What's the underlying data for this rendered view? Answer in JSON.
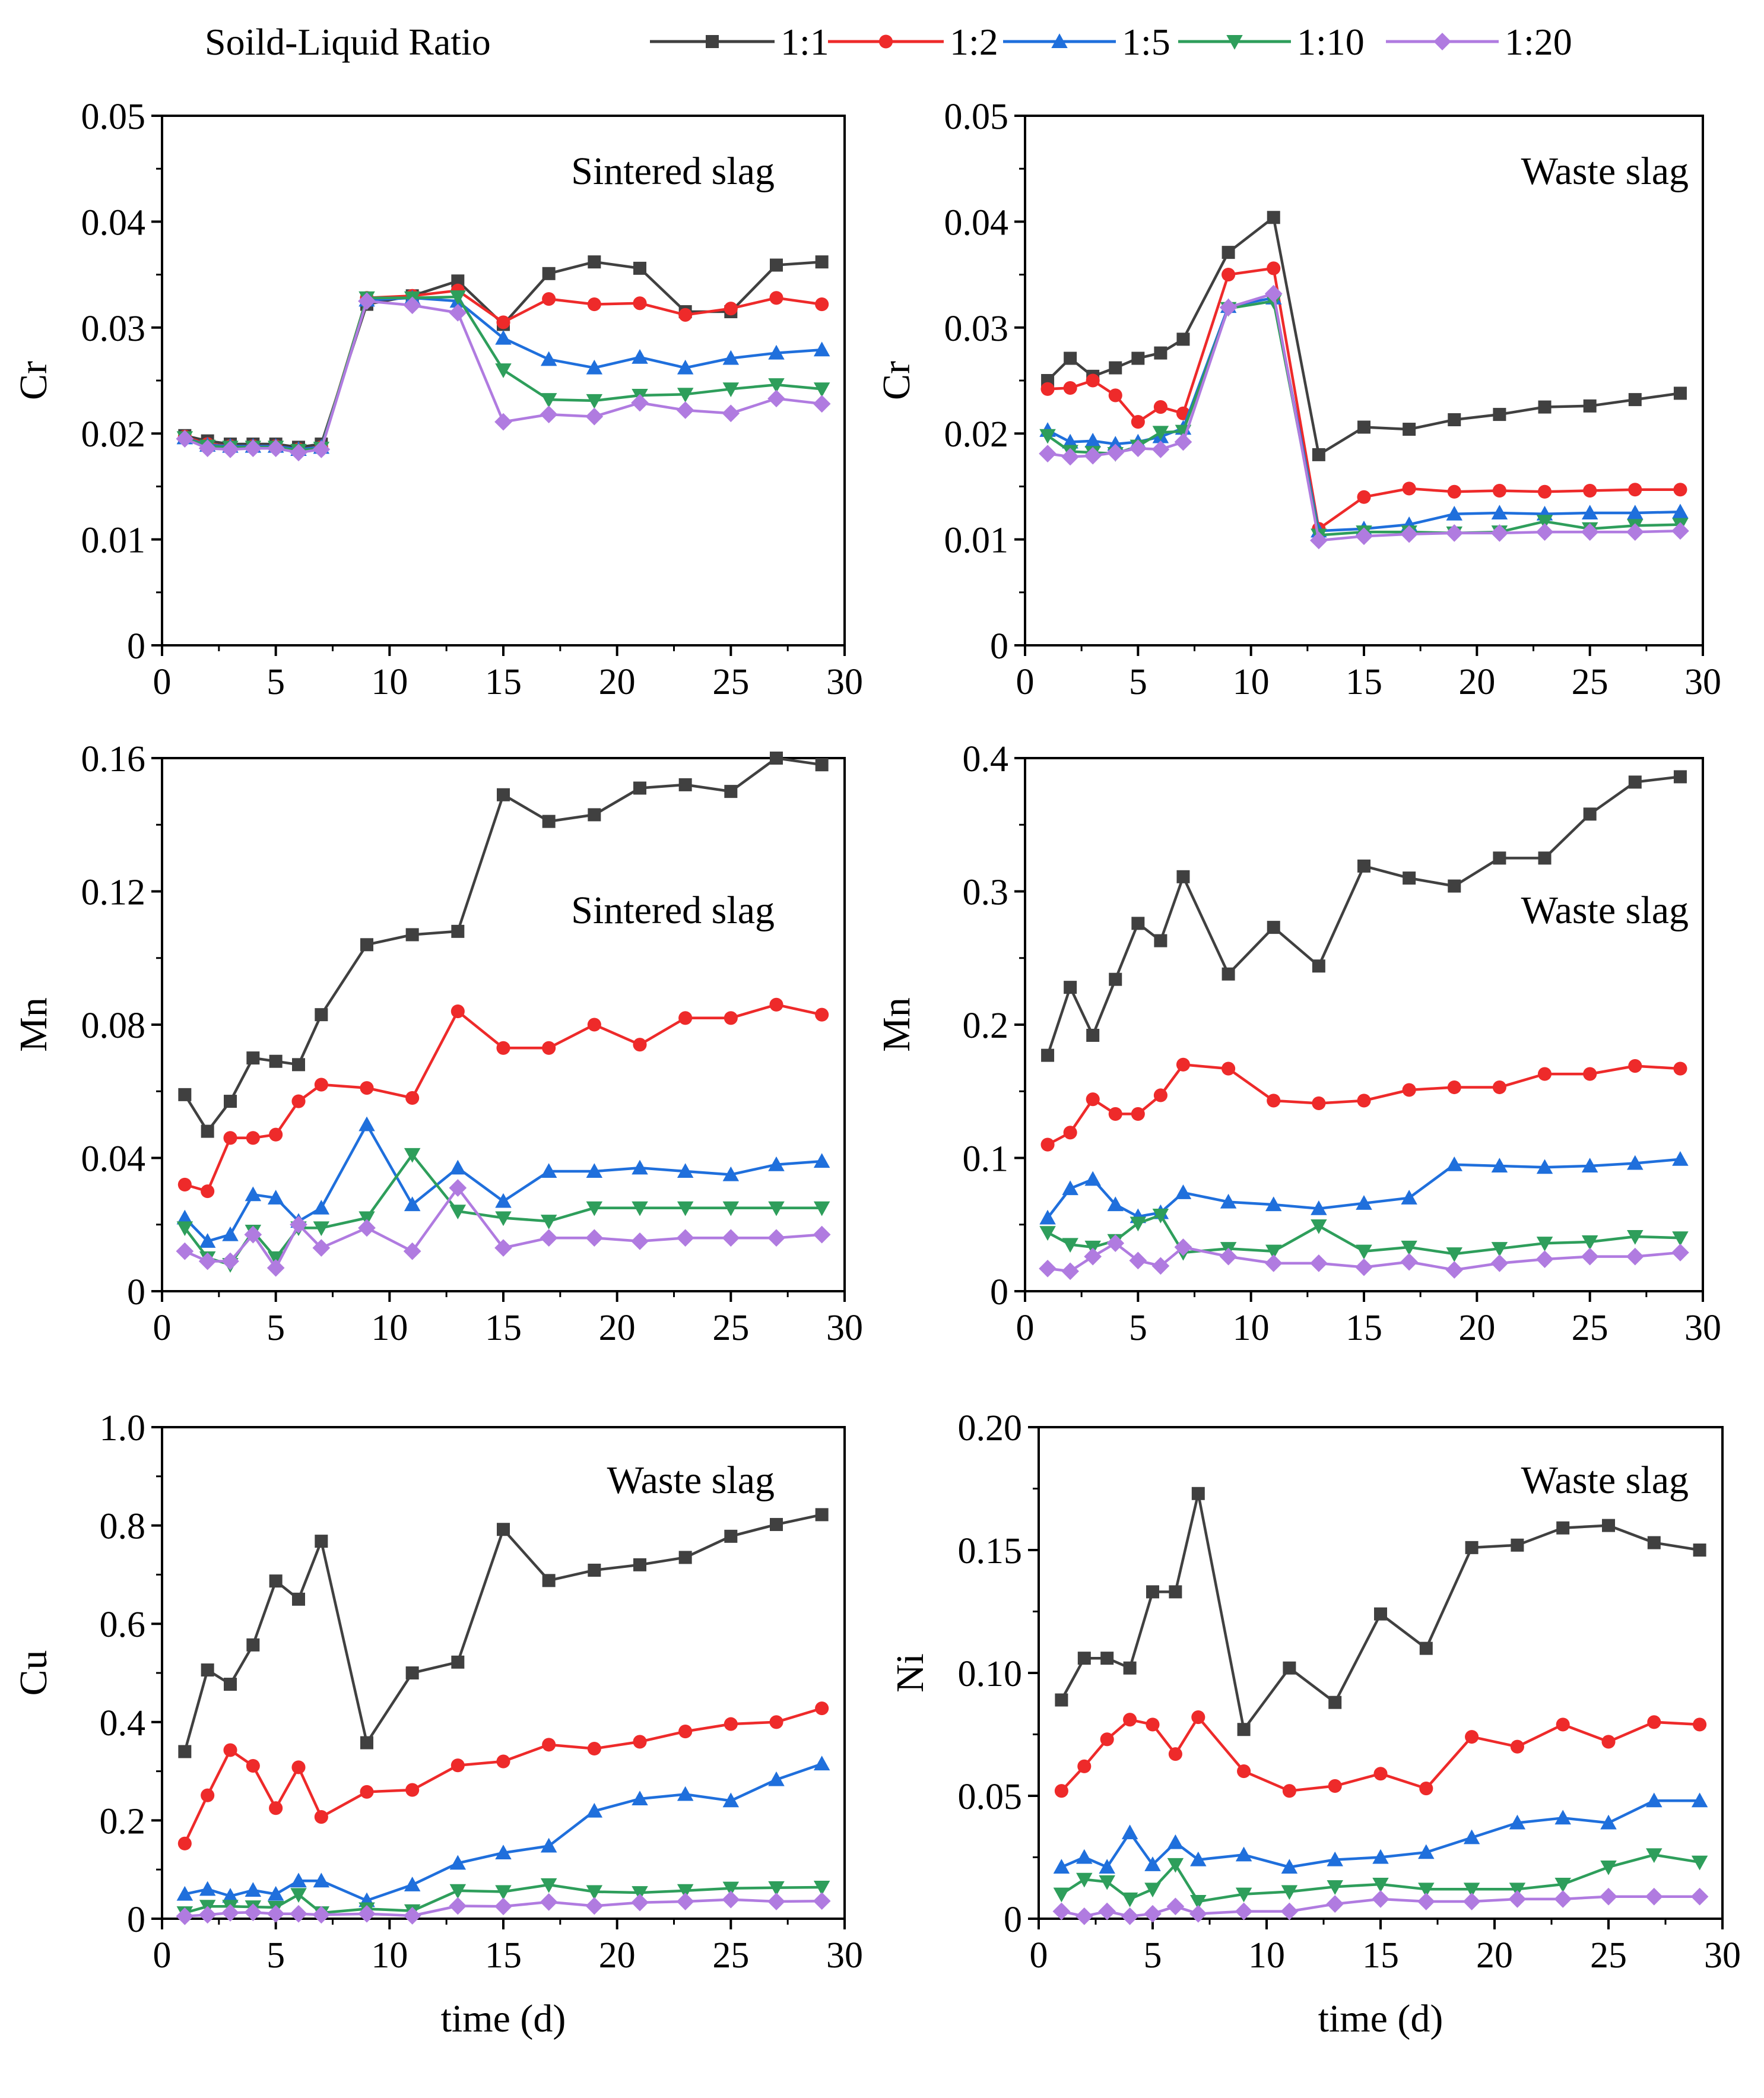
{
  "legend": {
    "title": "Soild-Liquid Ratio",
    "entries": [
      {
        "label": "1:1",
        "color": "#404040",
        "marker": "square"
      },
      {
        "label": "1:2",
        "color": "#ee2a2a",
        "marker": "circle"
      },
      {
        "label": "1:5",
        "color": "#1f6fdc",
        "marker": "triangle-up"
      },
      {
        "label": "1:10",
        "color": "#2e9e5b",
        "marker": "triangle-down"
      },
      {
        "label": "1:20",
        "color": "#b07be0",
        "marker": "diamond"
      }
    ]
  },
  "xlabel": "time (d)",
  "chart_data": [
    {
      "type": "line",
      "title": "Sintered slag",
      "ylabel": "Cr",
      "xlim": [
        0,
        30
      ],
      "ylim": [
        0,
        0.05
      ],
      "xticks": [
        "0",
        "5",
        "10",
        "15",
        "20",
        "25",
        "30"
      ],
      "yticks": [
        "0",
        "0.01",
        "0.02",
        "0.03",
        "0.04",
        "0.05"
      ],
      "show_xlabel": false,
      "x": [
        1,
        2,
        3,
        4,
        5,
        6,
        7,
        9,
        11,
        13,
        15,
        17,
        19,
        21,
        23,
        25,
        27,
        29
      ],
      "series": [
        {
          "name": "1:1",
          "values": [
            0.0198,
            0.0193,
            0.019,
            0.019,
            0.019,
            0.0187,
            0.019,
            0.0322,
            0.033,
            0.0344,
            0.0303,
            0.0351,
            0.0362,
            0.0356,
            0.0315,
            0.0315,
            0.0359,
            0.0362
          ]
        },
        {
          "name": "1:2",
          "values": [
            0.0197,
            0.019,
            0.0188,
            0.0188,
            0.0188,
            0.0185,
            0.0187,
            0.0328,
            0.033,
            0.0335,
            0.0305,
            0.0327,
            0.0322,
            0.0323,
            0.0312,
            0.0318,
            0.0328,
            0.0322
          ]
        },
        {
          "name": "1:5",
          "values": [
            0.0196,
            0.0189,
            0.0188,
            0.0188,
            0.0188,
            0.0185,
            0.0187,
            0.0326,
            0.0328,
            0.0325,
            0.029,
            0.027,
            0.0262,
            0.0272,
            0.0262,
            0.0271,
            0.0276,
            0.0279
          ]
        },
        {
          "name": "1:10",
          "values": [
            0.0196,
            0.0188,
            0.0187,
            0.0187,
            0.0187,
            0.0184,
            0.0186,
            0.0328,
            0.0328,
            0.0329,
            0.026,
            0.0232,
            0.0231,
            0.0236,
            0.0237,
            0.0242,
            0.0246,
            0.0242
          ]
        },
        {
          "name": "1:20",
          "values": [
            0.0195,
            0.0186,
            0.0185,
            0.0186,
            0.0186,
            0.0182,
            0.0185,
            0.0325,
            0.0321,
            0.0314,
            0.0211,
            0.0218,
            0.0216,
            0.0229,
            0.0222,
            0.0219,
            0.0233,
            0.0228
          ]
        }
      ]
    },
    {
      "type": "line",
      "title": "Waste slag",
      "ylabel": "Cr",
      "xlim": [
        0,
        30
      ],
      "ylim": [
        0,
        0.05
      ],
      "xticks": [
        "0",
        "5",
        "10",
        "15",
        "20",
        "25",
        "30"
      ],
      "yticks": [
        "0",
        "0.01",
        "0.02",
        "0.03",
        "0.04",
        "0.05"
      ],
      "show_xlabel": false,
      "x": [
        1,
        2,
        3,
        4,
        5,
        6,
        7,
        9,
        11,
        13,
        15,
        17,
        19,
        21,
        23,
        25,
        27,
        29
      ],
      "series": [
        {
          "name": "1:1",
          "values": [
            0.025,
            0.0271,
            0.0254,
            0.0262,
            0.0271,
            0.0276,
            0.0289,
            0.0371,
            0.0404,
            0.018,
            0.0206,
            0.0204,
            0.0213,
            0.0218,
            0.0225,
            0.0226,
            0.0232,
            0.0238
          ]
        },
        {
          "name": "1:2",
          "values": [
            0.0242,
            0.0243,
            0.025,
            0.0236,
            0.0211,
            0.0225,
            0.0219,
            0.035,
            0.0356,
            0.011,
            0.014,
            0.0148,
            0.0145,
            0.0146,
            0.0145,
            0.0146,
            0.0147,
            0.0147
          ]
        },
        {
          "name": "1:5",
          "values": [
            0.0203,
            0.0192,
            0.0193,
            0.019,
            0.0192,
            0.0197,
            0.0205,
            0.032,
            0.0328,
            0.0108,
            0.011,
            0.0114,
            0.0124,
            0.0125,
            0.0124,
            0.0125,
            0.0125,
            0.0126
          ]
        },
        {
          "name": "1:10",
          "values": [
            0.0198,
            0.0183,
            0.0182,
            0.0181,
            0.0188,
            0.0201,
            0.0202,
            0.0318,
            0.0325,
            0.0104,
            0.0107,
            0.0107,
            0.0106,
            0.0107,
            0.0117,
            0.011,
            0.0113,
            0.0114
          ]
        },
        {
          "name": "1:20",
          "values": [
            0.0181,
            0.0178,
            0.0179,
            0.0182,
            0.0186,
            0.0185,
            0.0192,
            0.0319,
            0.0332,
            0.0099,
            0.0103,
            0.0105,
            0.0106,
            0.0106,
            0.0107,
            0.0107,
            0.0107,
            0.0108
          ]
        }
      ]
    },
    {
      "type": "line",
      "title": "Sintered slag",
      "ylabel": "Mn",
      "xlim": [
        0,
        30
      ],
      "ylim": [
        0,
        0.16
      ],
      "xticks": [
        "0",
        "5",
        "10",
        "15",
        "20",
        "25",
        "30"
      ],
      "yticks": [
        "0",
        "0.04",
        "0.08",
        "0.12",
        "0.16"
      ],
      "show_xlabel": false,
      "x": [
        1,
        2,
        3,
        4,
        5,
        6,
        7,
        9,
        11,
        13,
        15,
        17,
        19,
        21,
        23,
        25,
        27,
        29
      ],
      "series": [
        {
          "name": "1:1",
          "values": [
            0.059,
            0.048,
            0.057,
            0.07,
            0.069,
            0.068,
            0.083,
            0.104,
            0.107,
            0.108,
            0.149,
            0.141,
            0.143,
            0.151,
            0.152,
            0.15,
            0.16,
            0.158
          ]
        },
        {
          "name": "1:2",
          "values": [
            0.032,
            0.03,
            0.046,
            0.046,
            0.047,
            0.057,
            0.062,
            0.061,
            0.058,
            0.084,
            0.073,
            0.073,
            0.08,
            0.074,
            0.082,
            0.082,
            0.086,
            0.083
          ]
        },
        {
          "name": "1:5",
          "values": [
            0.022,
            0.015,
            0.017,
            0.029,
            0.028,
            0.021,
            0.025,
            0.05,
            0.026,
            0.037,
            0.027,
            0.036,
            0.036,
            0.037,
            0.036,
            0.035,
            0.038,
            0.039
          ]
        },
        {
          "name": "1:10",
          "values": [
            0.019,
            0.01,
            0.008,
            0.018,
            0.01,
            0.019,
            0.019,
            0.022,
            0.041,
            0.024,
            0.022,
            0.021,
            0.025,
            0.025,
            0.025,
            0.025,
            0.025,
            0.025
          ]
        },
        {
          "name": "1:20",
          "values": [
            0.012,
            0.009,
            0.009,
            0.017,
            0.007,
            0.02,
            0.013,
            0.019,
            0.012,
            0.031,
            0.013,
            0.016,
            0.016,
            0.015,
            0.016,
            0.016,
            0.016,
            0.017
          ]
        }
      ]
    },
    {
      "type": "line",
      "title": "Waste slag",
      "ylabel": "Mn",
      "xlim": [
        0,
        30
      ],
      "ylim": [
        0,
        0.4
      ],
      "xticks": [
        "0",
        "5",
        "10",
        "15",
        "20",
        "25",
        "30"
      ],
      "yticks": [
        "0",
        "0.1",
        "0.2",
        "0.3",
        "0.4"
      ],
      "show_xlabel": false,
      "x": [
        1,
        2,
        3,
        4,
        5,
        6,
        7,
        9,
        11,
        13,
        15,
        17,
        19,
        21,
        23,
        25,
        27,
        29
      ],
      "series": [
        {
          "name": "1:1",
          "values": [
            0.177,
            0.228,
            0.192,
            0.234,
            0.276,
            0.263,
            0.311,
            0.238,
            0.273,
            0.244,
            0.319,
            0.31,
            0.304,
            0.325,
            0.325,
            0.358,
            0.382,
            0.386
          ]
        },
        {
          "name": "1:2",
          "values": [
            0.11,
            0.119,
            0.144,
            0.133,
            0.133,
            0.147,
            0.17,
            0.167,
            0.143,
            0.141,
            0.143,
            0.151,
            0.153,
            0.153,
            0.163,
            0.163,
            0.169,
            0.167
          ]
        },
        {
          "name": "1:5",
          "values": [
            0.055,
            0.077,
            0.084,
            0.065,
            0.056,
            0.059,
            0.074,
            0.067,
            0.065,
            0.062,
            0.066,
            0.07,
            0.095,
            0.094,
            0.093,
            0.094,
            0.096,
            0.099
          ]
        },
        {
          "name": "1:10",
          "values": [
            0.044,
            0.035,
            0.033,
            0.038,
            0.051,
            0.057,
            0.029,
            0.032,
            0.03,
            0.049,
            0.03,
            0.033,
            0.028,
            0.032,
            0.036,
            0.037,
            0.041,
            0.04
          ]
        },
        {
          "name": "1:20",
          "values": [
            0.017,
            0.015,
            0.026,
            0.036,
            0.023,
            0.019,
            0.033,
            0.026,
            0.021,
            0.021,
            0.018,
            0.022,
            0.016,
            0.021,
            0.024,
            0.026,
            0.026,
            0.029
          ]
        }
      ]
    },
    {
      "type": "line",
      "title": "Waste slag",
      "ylabel": "Cu",
      "xlim": [
        0,
        30
      ],
      "ylim": [
        0,
        1.0
      ],
      "xticks": [
        "0",
        "5",
        "10",
        "15",
        "20",
        "25",
        "30"
      ],
      "yticks": [
        "0",
        "0.2",
        "0.4",
        "0.6",
        "0.8",
        "1.0"
      ],
      "show_xlabel": true,
      "x": [
        1,
        2,
        3,
        4,
        5,
        6,
        7,
        9,
        11,
        13,
        15,
        17,
        19,
        21,
        23,
        25,
        27,
        29
      ],
      "series": [
        {
          "name": "1:1",
          "values": [
            0.34,
            0.506,
            0.477,
            0.557,
            0.687,
            0.65,
            0.768,
            0.358,
            0.5,
            0.522,
            0.792,
            0.688,
            0.709,
            0.72,
            0.735,
            0.778,
            0.802,
            0.822
          ]
        },
        {
          "name": "1:2",
          "values": [
            0.153,
            0.251,
            0.343,
            0.311,
            0.225,
            0.308,
            0.207,
            0.258,
            0.262,
            0.312,
            0.32,
            0.354,
            0.346,
            0.36,
            0.381,
            0.396,
            0.4,
            0.428
          ]
        },
        {
          "name": "1:5",
          "values": [
            0.05,
            0.06,
            0.046,
            0.058,
            0.05,
            0.077,
            0.077,
            0.037,
            0.069,
            0.113,
            0.134,
            0.148,
            0.219,
            0.244,
            0.253,
            0.24,
            0.283,
            0.315
          ]
        },
        {
          "name": "1:10",
          "values": [
            0.012,
            0.025,
            0.025,
            0.024,
            0.023,
            0.049,
            0.012,
            0.02,
            0.016,
            0.057,
            0.055,
            0.069,
            0.055,
            0.053,
            0.057,
            0.062,
            0.063,
            0.064
          ]
        },
        {
          "name": "1:20",
          "values": [
            0.005,
            0.008,
            0.012,
            0.013,
            0.01,
            0.01,
            0.008,
            0.01,
            0.006,
            0.026,
            0.025,
            0.034,
            0.026,
            0.033,
            0.035,
            0.039,
            0.035,
            0.036
          ]
        }
      ]
    },
    {
      "type": "line",
      "title": "Waste slag",
      "ylabel": "Ni",
      "xlim": [
        0,
        30
      ],
      "ylim": [
        0,
        0.2
      ],
      "xticks": [
        "0",
        "5",
        "10",
        "15",
        "20",
        "25",
        "30"
      ],
      "yticks": [
        "0",
        "0.05",
        "0.10",
        "0.15",
        "0.20"
      ],
      "show_xlabel": true,
      "x": [
        1,
        2,
        3,
        4,
        5,
        6,
        7,
        9,
        11,
        13,
        15,
        17,
        19,
        21,
        23,
        25,
        27,
        29
      ],
      "series": [
        {
          "name": "1:1",
          "values": [
            0.089,
            0.106,
            0.106,
            0.102,
            0.133,
            0.133,
            0.173,
            0.077,
            0.102,
            0.088,
            0.124,
            0.11,
            0.151,
            0.152,
            0.159,
            0.16,
            0.153,
            0.15
          ]
        },
        {
          "name": "1:2",
          "values": [
            0.052,
            0.062,
            0.073,
            0.081,
            0.079,
            0.067,
            0.082,
            0.06,
            0.052,
            0.054,
            0.059,
            0.053,
            0.074,
            0.07,
            0.079,
            0.072,
            0.08,
            0.079
          ]
        },
        {
          "name": "1:5",
          "values": [
            0.021,
            0.025,
            0.021,
            0.035,
            0.022,
            0.031,
            0.024,
            0.026,
            0.021,
            0.024,
            0.025,
            0.027,
            0.033,
            0.039,
            0.041,
            0.039,
            0.048,
            0.048
          ]
        },
        {
          "name": "1:10",
          "values": [
            0.01,
            0.016,
            0.015,
            0.008,
            0.012,
            0.022,
            0.007,
            0.01,
            0.011,
            0.013,
            0.014,
            0.012,
            0.012,
            0.012,
            0.014,
            0.021,
            0.026,
            0.023
          ]
        },
        {
          "name": "1:20",
          "values": [
            0.003,
            0.001,
            0.003,
            0.001,
            0.002,
            0.005,
            0.002,
            0.003,
            0.003,
            0.006,
            0.008,
            0.007,
            0.007,
            0.008,
            0.008,
            0.009,
            0.009,
            0.009
          ]
        }
      ]
    }
  ]
}
